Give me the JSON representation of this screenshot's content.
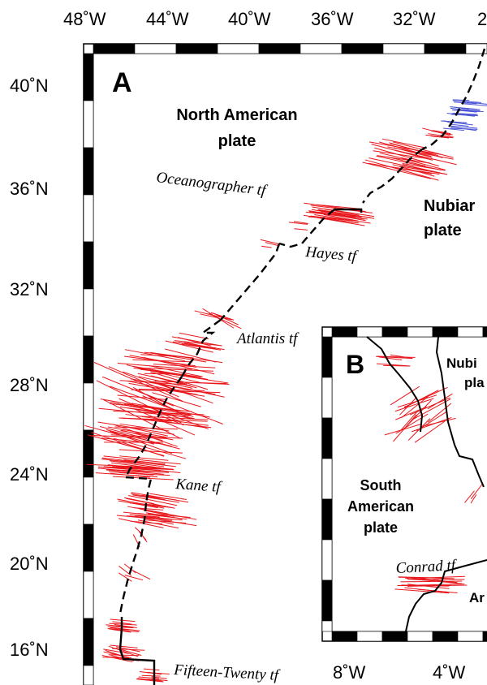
{
  "top_axis": {
    "ticks": [
      "48˚W",
      "44˚W",
      "40˚W",
      "36˚W",
      "32˚W",
      "2"
    ]
  },
  "left_axis": {
    "ticks": [
      "40˚N",
      "36˚N",
      "32˚N",
      "28˚N",
      "24˚N",
      "20˚N",
      "16˚N"
    ]
  },
  "panel_a": {
    "letter": "A",
    "plates": {
      "north_american": [
        "North American",
        "plate"
      ],
      "nubian": [
        "Nubiar",
        "plate"
      ]
    },
    "transform_faults": {
      "oceanographer": "Oceanographer tf",
      "hayes": "Hayes tf",
      "atlantis": "Atlantis tf",
      "kane": "Kane tf",
      "fifteen_twenty": "Fifteen-Twenty tf"
    }
  },
  "panel_b": {
    "letter": "B",
    "plates": {
      "nubian": [
        "Nubi",
        "pla"
      ],
      "south_american": [
        "South",
        "American",
        "plate"
      ],
      "antarctic_partial": "Ar"
    },
    "transform_faults": {
      "conrad": "Conrad tf"
    },
    "bottom_axis": {
      "ticks": [
        "8˚W",
        "4˚W"
      ]
    }
  },
  "colors": {
    "ridge": "#000000",
    "mechanism_red": "#e8161b",
    "mechanism_blue": "#4b55d6",
    "frame": "#000000"
  }
}
